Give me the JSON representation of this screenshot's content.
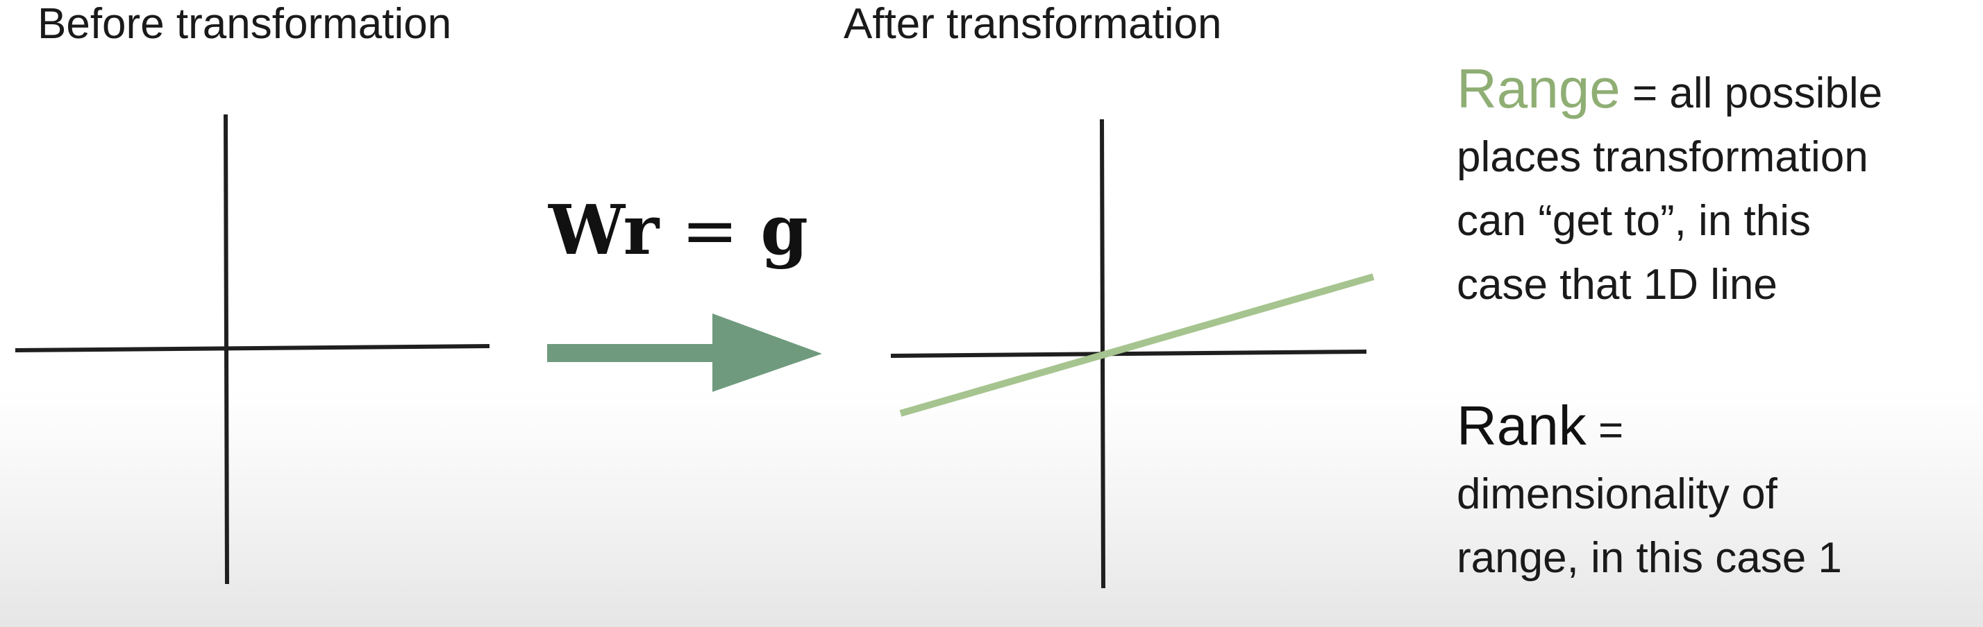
{
  "headings": {
    "before": "Before transformation",
    "after": "After transformation"
  },
  "equation": {
    "lhs_matrix": "W",
    "lhs_vector": "r",
    "equals": "=",
    "rhs_vector": "g"
  },
  "range_note": {
    "term": "Range",
    "definition_lines": [
      "= all possible",
      "places transformation",
      "can “get to”, in this",
      "case that 1D line"
    ]
  },
  "rank_note": {
    "term": "Rank",
    "definition_lines": [
      "=",
      "dimensionality of",
      "range, in this case 1"
    ]
  },
  "colors": {
    "axis": "#1f1f1f",
    "arrow": "#6f9a7e",
    "range_line": "#a6c48f",
    "range_text": "#8fae74"
  }
}
